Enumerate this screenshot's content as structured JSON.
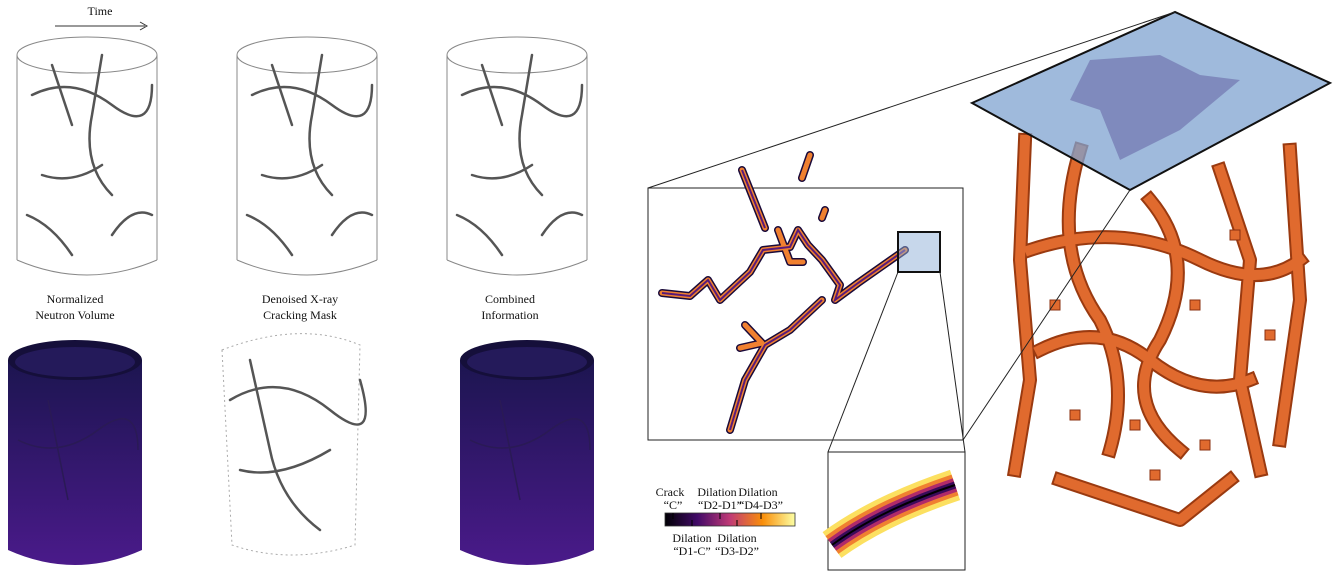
{
  "time_label": "Time",
  "panels": [
    {
      "lines": [
        "Normalized",
        "Neutron Volume"
      ]
    },
    {
      "lines": [
        "Denoised X-ray",
        "Cracking Mask"
      ]
    },
    {
      "lines": [
        "Combined",
        "Information"
      ]
    }
  ],
  "legend": {
    "top": [
      {
        "name": "Crack",
        "code": "“C”"
      },
      {
        "name": "Dilation",
        "code": "“D2-D1”"
      },
      {
        "name": "Dilation",
        "code": "“D4-D3”"
      }
    ],
    "bottom": [
      {
        "name": "Dilation",
        "code": "“D1-C”"
      },
      {
        "name": "Dilation",
        "code": "“D3-D2”"
      }
    ]
  }
}
